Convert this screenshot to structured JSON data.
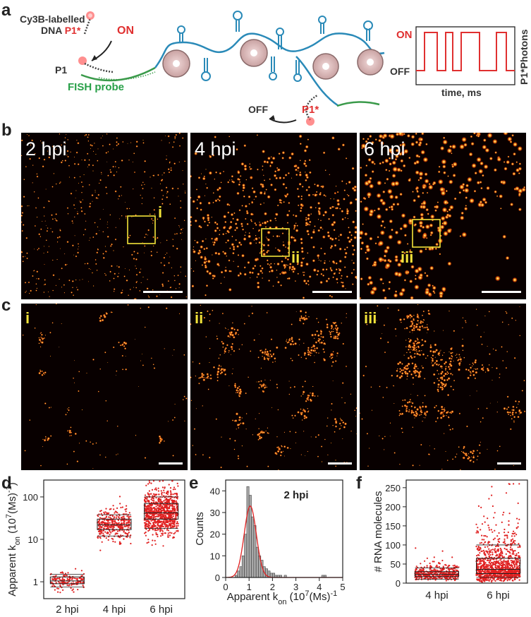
{
  "panel_a": {
    "letter": "a",
    "dna_line1": "Cy3B-labelled",
    "dna_line2": "DNA ",
    "p1star": "P1*",
    "on": "ON",
    "p1": "P1",
    "fish_probe": "FISH probe",
    "off": "OFF",
    "p1star_2": "P1*",
    "trace": {
      "on_label": "ON",
      "off_label": "OFF",
      "xlabel": "time, ms",
      "ylabel": "P1*Photons"
    }
  },
  "panel_b": {
    "letter": "b",
    "images": [
      {
        "time": "2 hpi",
        "roi": "i"
      },
      {
        "time": "4 hpi",
        "roi": "ii"
      },
      {
        "time": "6 hpi",
        "roi": "iii"
      }
    ]
  },
  "panel_c": {
    "letter": "c",
    "zooms": [
      "i",
      "ii",
      "iii"
    ]
  },
  "chart_data": [
    {
      "panel": "d",
      "type": "scatter",
      "ylabel_main": "Apparent k",
      "ylabel_sub": "on",
      "ylabel_unit": " (10",
      "ylabel_exp": "7",
      "ylabel_tail": "(Ms)",
      "ylabel_exp2": "-1",
      "ylabel_close": ")",
      "yscale": "log",
      "ylim": [
        0.4,
        250
      ],
      "yticks": [
        1,
        10,
        100
      ],
      "categories": [
        "2 hpi",
        "4 hpi",
        "6 hpi"
      ],
      "box": [
        {
          "q1": 0.9,
          "median": 1.05,
          "q3": 1.3,
          "low": 0.75,
          "high": 1.5
        },
        {
          "q1": 17,
          "median": 22,
          "q3": 30,
          "low": 12,
          "high": 38
        },
        {
          "q1": 30,
          "median": 42,
          "q3": 70,
          "low": 18,
          "high": 100
        }
      ]
    },
    {
      "panel": "e",
      "type": "bar",
      "title": "2 hpi",
      "xlabel_main": "Apparent k",
      "xlabel_sub": "on",
      "xlabel_unit": " (10",
      "xlabel_exp": "7",
      "xlabel_tail": "(Ms)",
      "xlabel_exp2": "-1",
      "ylabel": "Counts",
      "xlim": [
        0,
        5
      ],
      "ylim": [
        0,
        45
      ],
      "xticks": [
        0,
        1,
        2,
        3,
        4,
        5
      ],
      "yticks": [
        0,
        10,
        20,
        30,
        40
      ],
      "bin_width": 0.1,
      "bin_start": 0.4,
      "counts": [
        1,
        3,
        5,
        10,
        20,
        42,
        38,
        28,
        24,
        14,
        10,
        8,
        5,
        4,
        3,
        2,
        2,
        1,
        1,
        1,
        0,
        1,
        0,
        0,
        0,
        0,
        0,
        0,
        0,
        0,
        0,
        0,
        0,
        0,
        0,
        0,
        0,
        1,
        1
      ],
      "fit": {
        "type": "gaussian",
        "mu": 1.05,
        "sigma": 0.26,
        "amp": 33
      }
    },
    {
      "panel": "f",
      "type": "scatter",
      "ylabel": "# RNA molecules",
      "ylim": [
        0,
        270
      ],
      "yticks": [
        0,
        50,
        100,
        150,
        200,
        250
      ],
      "categories": [
        "4 hpi",
        "6 hpi"
      ],
      "box": [
        {
          "q1": 17,
          "median": 23,
          "q3": 30,
          "low": 10,
          "high": 40
        },
        {
          "q1": 25,
          "median": 36,
          "q3": 65,
          "low": 15,
          "high": 100
        }
      ]
    }
  ]
}
